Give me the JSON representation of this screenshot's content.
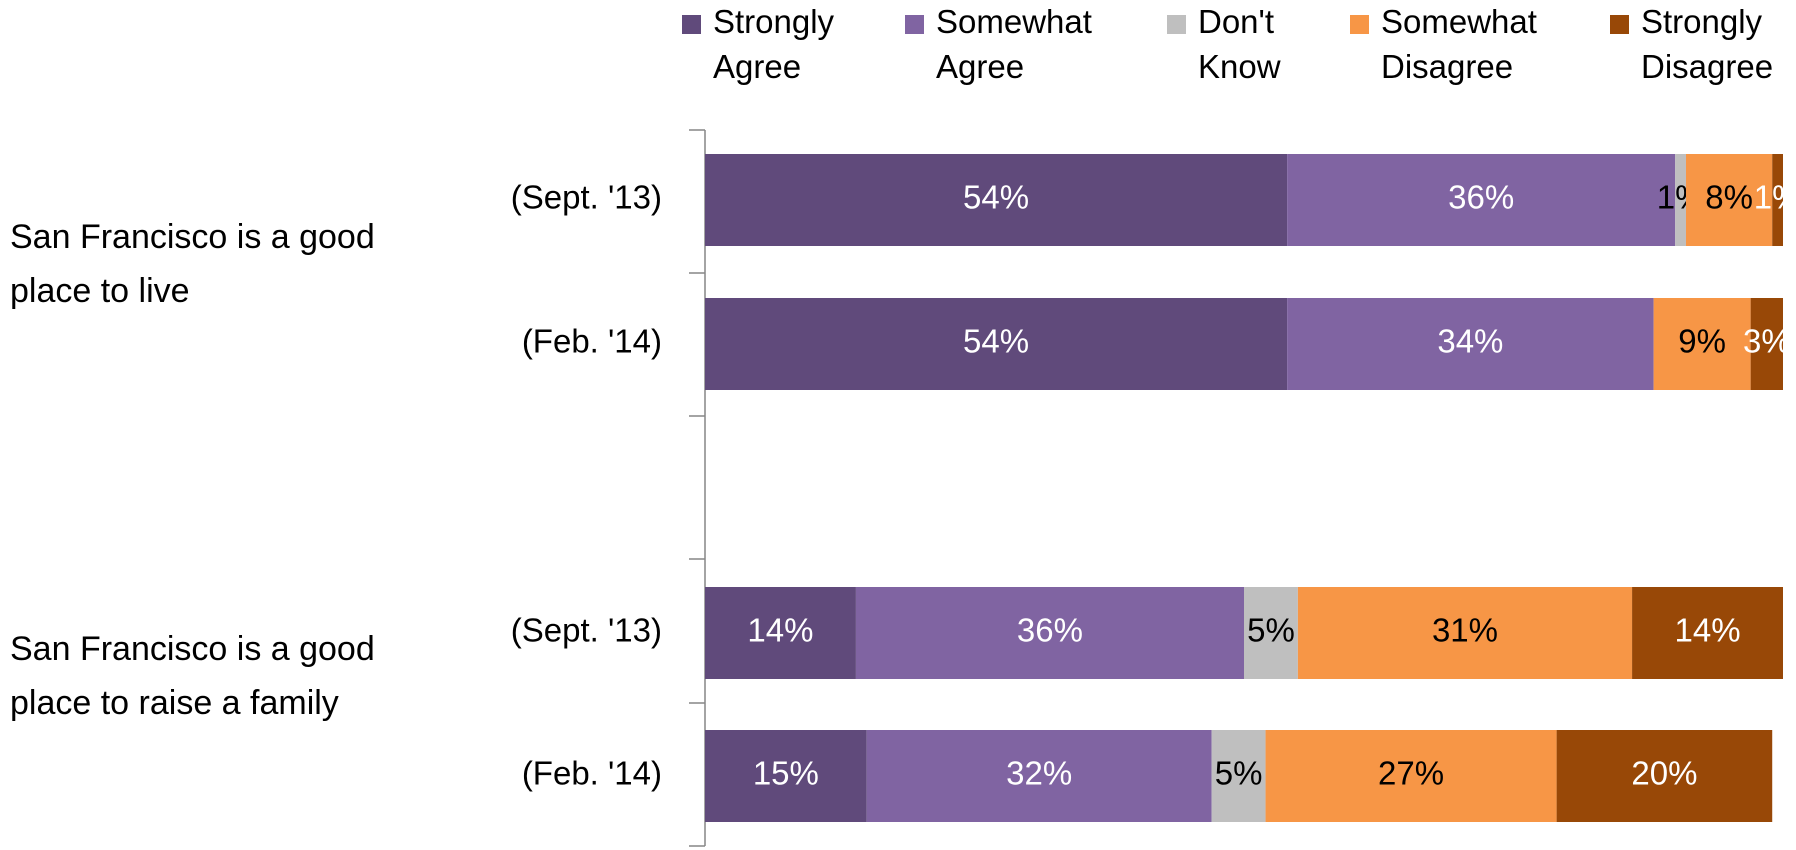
{
  "chart_data": {
    "type": "stacked_barh",
    "categories": [
      "(Sept. '13)",
      "(Feb. '14)",
      "(Sept. '13)",
      "(Feb. '14)"
    ],
    "groups": [
      {
        "label": "San Francisco is a good place to live"
      },
      {
        "label": "San Francisco is a good place to raise a family"
      }
    ],
    "xlim": [
      0,
      100
    ],
    "legend": "top",
    "series": [
      {
        "name": "Strongly Agree",
        "color": "#604a7b",
        "values": [
          54,
          54,
          14,
          15
        ],
        "value_labels": [
          "54%",
          "54%",
          "14%",
          "15%"
        ]
      },
      {
        "name": "Somewhat Agree",
        "color": "#8064a2",
        "values": [
          36,
          34,
          36,
          32
        ],
        "value_labels": [
          "36%",
          "34%",
          "36%",
          "32%"
        ]
      },
      {
        "name": "Don't Know",
        "color": "#bfbfbf",
        "values": [
          1,
          null,
          5,
          5
        ],
        "value_labels": [
          "1%",
          null,
          "5%",
          "5%"
        ]
      },
      {
        "name": "Somewhat Disagree",
        "color": "#f79646",
        "values": [
          8,
          9,
          31,
          27
        ],
        "value_labels": [
          "8%",
          "9%",
          "31%",
          "27%"
        ]
      },
      {
        "name": "Strongly Disagree",
        "color": "#984807",
        "values": [
          1,
          3,
          14,
          20
        ],
        "value_labels": [
          "1%",
          "3%",
          "14%",
          "20%"
        ]
      }
    ]
  }
}
